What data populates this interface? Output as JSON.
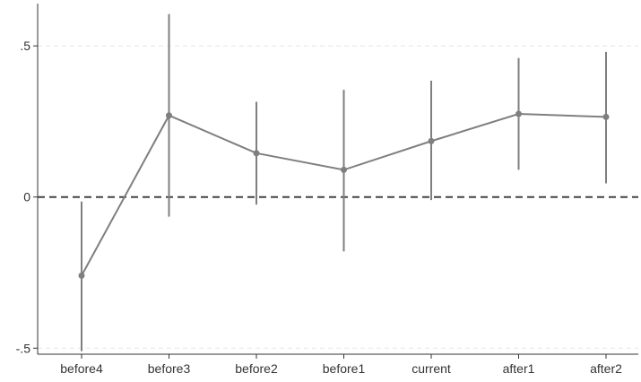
{
  "chart_data": {
    "type": "line",
    "title": "",
    "xlabel": "",
    "ylabel": "",
    "categories": [
      "before4",
      "before3",
      "before2",
      "before1",
      "current",
      "after1",
      "after2"
    ],
    "values": [
      -0.26,
      0.27,
      0.145,
      0.09,
      0.185,
      0.275,
      0.265
    ],
    "ci_lower": [
      -0.51,
      -0.065,
      -0.025,
      -0.18,
      -0.01,
      0.09,
      0.045
    ],
    "ci_upper": [
      -0.015,
      0.605,
      0.315,
      0.355,
      0.385,
      0.46,
      0.48
    ],
    "ylim": [
      -0.52,
      0.64
    ],
    "yticks": [
      {
        "value": -0.5,
        "label": "-.5"
      },
      {
        "value": 0,
        "label": "0"
      },
      {
        "value": 0.5,
        "label": ".5"
      }
    ],
    "reference_line": {
      "value": 0,
      "style": "dashed"
    },
    "grid": true,
    "colors": {
      "series": "#7f7f7f",
      "reference": "#444444",
      "grid": "#e6e6e6",
      "axis": "#333333"
    }
  }
}
